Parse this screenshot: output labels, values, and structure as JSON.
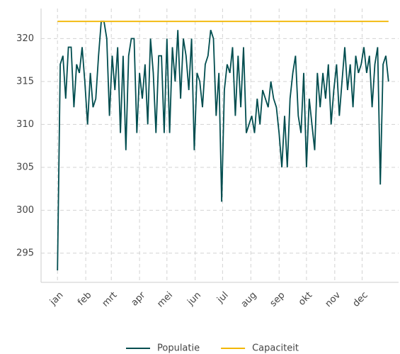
{
  "chart_data": {
    "type": "line",
    "series": [
      {
        "name": "Populatie",
        "color": "#004d4f",
        "x": [
          0,
          3,
          6,
          9,
          12,
          15,
          18,
          21,
          24,
          27,
          30,
          33,
          36,
          39,
          42,
          45,
          48,
          51,
          54,
          57,
          60,
          63,
          66,
          69,
          72,
          75,
          78,
          81,
          84,
          87,
          90,
          93,
          96,
          99,
          102,
          105,
          108,
          111,
          114,
          117,
          120,
          123,
          126,
          129,
          132,
          135,
          138,
          141,
          144,
          147,
          150,
          153,
          156,
          159,
          162,
          165,
          168,
          171,
          174,
          177,
          180,
          183,
          186,
          189,
          192,
          195,
          198,
          201,
          204,
          207,
          210,
          213,
          216,
          219,
          222,
          225,
          228,
          231,
          234,
          237,
          240,
          243,
          246,
          249,
          252,
          255,
          258,
          261,
          264,
          267,
          270,
          273,
          276,
          279,
          282,
          285,
          288,
          291,
          294,
          297,
          300,
          303,
          306,
          309,
          312,
          315,
          318,
          321,
          324,
          327,
          330,
          333,
          336,
          339,
          342,
          345,
          348,
          351,
          354,
          357,
          360,
          363
        ],
        "values": [
          293,
          317,
          318,
          313,
          319,
          319,
          312,
          317,
          316,
          319,
          315,
          310,
          316,
          312,
          313,
          318,
          322,
          322,
          320,
          311,
          318,
          314,
          319,
          309,
          318,
          307,
          318,
          320,
          320,
          309,
          316,
          313,
          317,
          310,
          320,
          316,
          309,
          318,
          318,
          309,
          320,
          309,
          319,
          315,
          321,
          313,
          320,
          318,
          314,
          320,
          307,
          316,
          315,
          312,
          317,
          318,
          321,
          320,
          311,
          316,
          301,
          314,
          317,
          316,
          319,
          311,
          318,
          312,
          319,
          309,
          310,
          311,
          309,
          313,
          310,
          314,
          313,
          312,
          315,
          313,
          312,
          309,
          305,
          311,
          305,
          313,
          316,
          318,
          311,
          309,
          316,
          305,
          313,
          310,
          307,
          316,
          312,
          316,
          313,
          317,
          310,
          314,
          317,
          311,
          315,
          319,
          314,
          317,
          312,
          318,
          316,
          317,
          319,
          316,
          318,
          312,
          317,
          319,
          303,
          317,
          318,
          315
        ]
      },
      {
        "name": "Capaciteit",
        "color": "#f2b705",
        "x": [
          0,
          363
        ],
        "values": [
          322,
          322
        ]
      }
    ],
    "xlim": [
      -18,
      374
    ],
    "xticks": [
      {
        "value": 0,
        "label": "jan"
      },
      {
        "value": 31,
        "label": "feb"
      },
      {
        "value": 59,
        "label": "mrt"
      },
      {
        "value": 90,
        "label": "apr"
      },
      {
        "value": 120,
        "label": "mei"
      },
      {
        "value": 151,
        "label": "jun"
      },
      {
        "value": 181,
        "label": "jul"
      },
      {
        "value": 212,
        "label": "aug"
      },
      {
        "value": 243,
        "label": "sep"
      },
      {
        "value": 273,
        "label": "okt"
      },
      {
        "value": 304,
        "label": "nov"
      },
      {
        "value": 334,
        "label": "dec"
      }
    ],
    "ylim": [
      291.6,
      323.5
    ],
    "yticks": [
      295,
      300,
      305,
      310,
      315,
      320
    ],
    "grid": true,
    "legend": "bottom"
  }
}
